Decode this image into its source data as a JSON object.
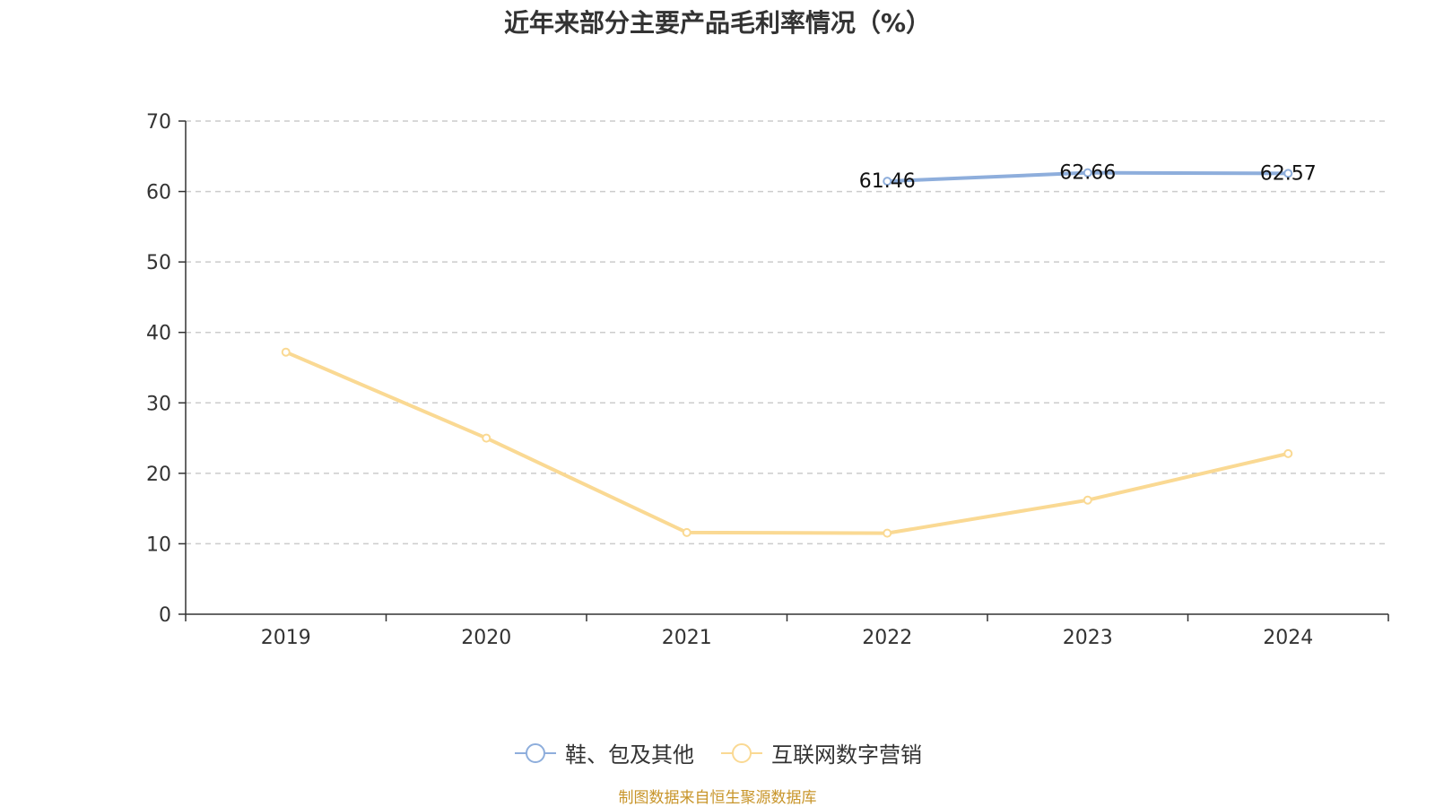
{
  "chart_data": {
    "type": "line",
    "title": "近年来部分主要产品毛利率情况（%）",
    "categories": [
      "2019",
      "2020",
      "2021",
      "2022",
      "2023",
      "2024"
    ],
    "ylim": [
      0,
      70
    ],
    "yticks": [
      0,
      10,
      20,
      30,
      40,
      50,
      60,
      70
    ],
    "grid": true,
    "legend_position": "bottom",
    "series": [
      {
        "name": "鞋、包及其他",
        "color": "#8eaedc",
        "values": [
          null,
          null,
          null,
          61.46,
          62.66,
          62.57
        ],
        "labels": [
          "",
          "",
          "",
          "61.46",
          "62.66",
          "62.57"
        ]
      },
      {
        "name": "互联网数字营销",
        "color": "#fad993",
        "values": [
          37.2,
          25.0,
          11.6,
          11.5,
          16.2,
          22.8
        ],
        "labels": [
          "",
          "",
          "",
          "",
          "",
          ""
        ]
      }
    ]
  },
  "source_note": "制图数据来自恒生聚源数据库"
}
